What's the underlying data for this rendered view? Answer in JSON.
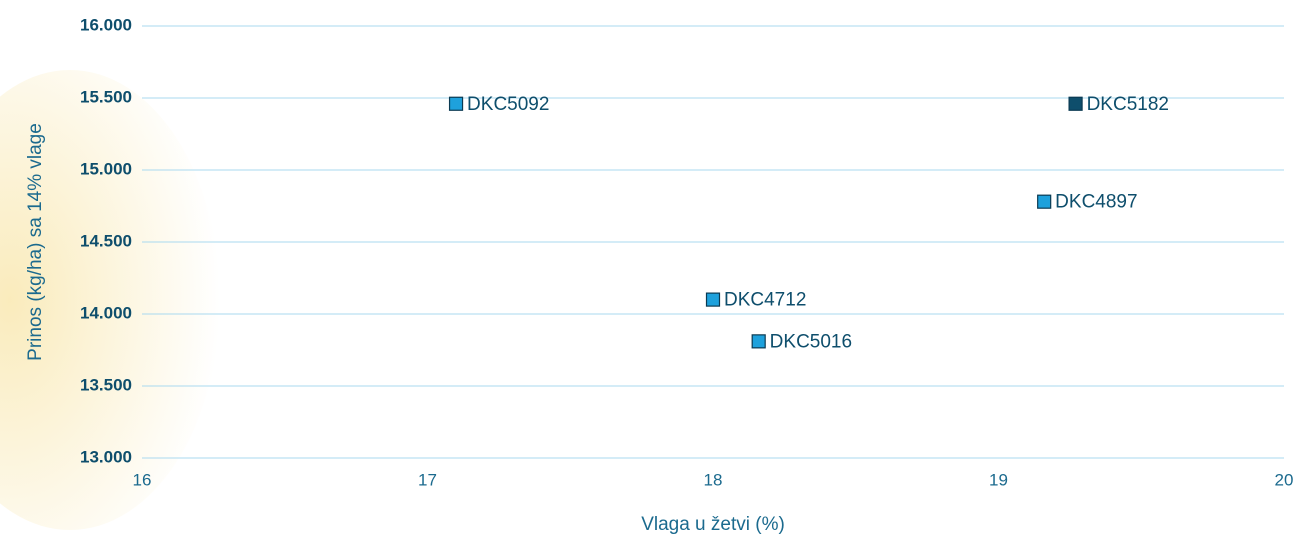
{
  "chart_data": {
    "type": "scatter",
    "xlabel": "Vlaga u žetvi (%)",
    "ylabel": "Prinos (kg/ha) sa 14% vlage",
    "xlim": [
      16,
      20
    ],
    "xticks": [
      16,
      17,
      18,
      19,
      20
    ],
    "ylim": [
      13000,
      16000
    ],
    "yticks": [
      {
        "value": 13000,
        "label": "13.000"
      },
      {
        "value": 13500,
        "label": "13.500"
      },
      {
        "value": 14000,
        "label": "14.000"
      },
      {
        "value": 14500,
        "label": "14.500"
      },
      {
        "value": 15000,
        "label": "15.000"
      },
      {
        "value": 15500,
        "label": "15.500"
      },
      {
        "value": 16000,
        "label": "16.000"
      }
    ],
    "grid": true,
    "series": [
      {
        "name": "DKC5092",
        "color": "#1ea1dc",
        "x": [
          17.1
        ],
        "values": [
          15460
        ]
      },
      {
        "name": "DKC5182",
        "color": "#0e4e6c",
        "x": [
          19.27
        ],
        "values": [
          15460
        ]
      },
      {
        "name": "DKC4897",
        "color": "#1ea1dc",
        "x": [
          19.16
        ],
        "values": [
          14780
        ]
      },
      {
        "name": "DKC4712",
        "color": "#1ea1dc",
        "x": [
          18.0
        ],
        "values": [
          14100
        ]
      },
      {
        "name": "DKC5016",
        "color": "#1ea1dc",
        "x": [
          18.16
        ],
        "values": [
          13810
        ]
      }
    ]
  }
}
